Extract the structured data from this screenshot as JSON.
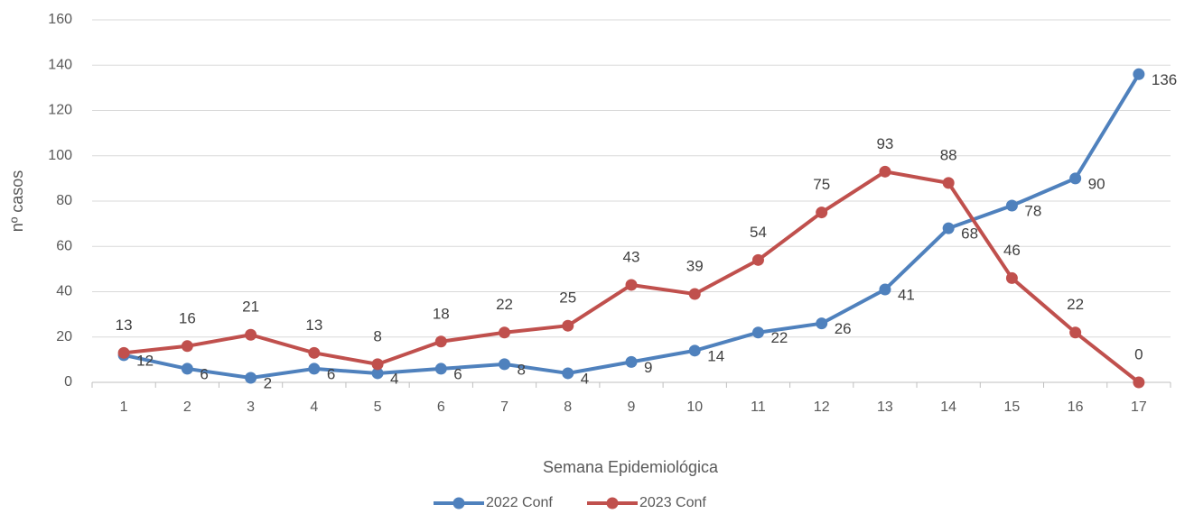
{
  "chart_data": {
    "type": "line",
    "x_label": "Semana Epidemiológica",
    "y_label": "nº casos",
    "categories": [
      1,
      2,
      3,
      4,
      5,
      6,
      7,
      8,
      9,
      10,
      11,
      12,
      13,
      14,
      15,
      16,
      17
    ],
    "series": [
      {
        "name": "2022 Conf",
        "color": "#4f81bd",
        "values": [
          12,
          6,
          2,
          6,
          4,
          6,
          8,
          4,
          9,
          14,
          22,
          26,
          41,
          68,
          78,
          90,
          136
        ]
      },
      {
        "name": "2023 Conf",
        "color": "#c0504d",
        "values": [
          13,
          16,
          21,
          13,
          8,
          18,
          22,
          25,
          43,
          39,
          54,
          75,
          93,
          88,
          46,
          22,
          0
        ]
      }
    ],
    "ylim": [
      0,
      160
    ],
    "yticks": [
      0,
      20,
      40,
      60,
      80,
      100,
      120,
      140,
      160
    ],
    "grid": true,
    "legend": "bottom"
  }
}
